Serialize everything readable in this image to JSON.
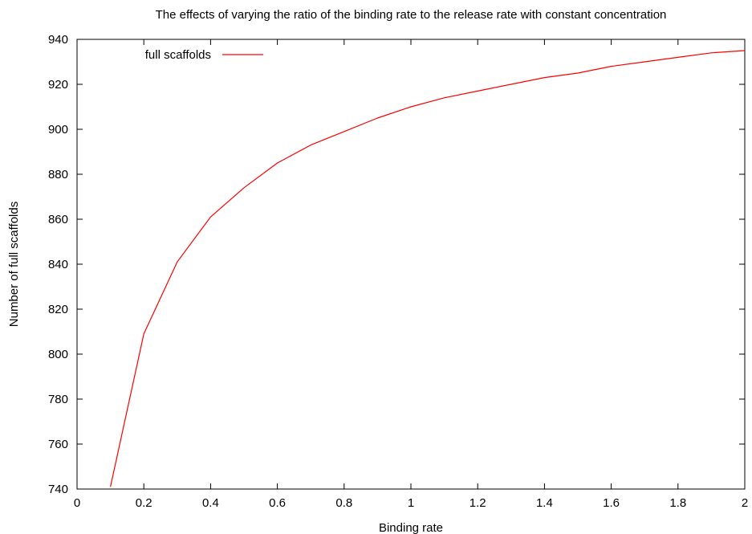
{
  "chart_data": {
    "type": "line",
    "title": "The effects of varying the ratio of the binding rate to the release rate with constant concentration",
    "xlabel": "Binding rate",
    "ylabel": "Number of full scaffolds",
    "xlim": [
      0,
      2
    ],
    "ylim": [
      740,
      940
    ],
    "x_ticks": [
      0,
      0.2,
      0.4,
      0.6,
      0.8,
      1,
      1.2,
      1.4,
      1.6,
      1.8,
      2
    ],
    "x_tick_labels": [
      "0",
      "0.2",
      "0.4",
      "0.6",
      "0.8",
      "1",
      "1.2",
      "1.4",
      "1.6",
      "1.8",
      "2"
    ],
    "y_ticks": [
      740,
      760,
      780,
      800,
      820,
      840,
      860,
      880,
      900,
      920,
      940
    ],
    "y_tick_labels": [
      "740",
      "760",
      "780",
      "800",
      "820",
      "840",
      "860",
      "880",
      "900",
      "920",
      "940"
    ],
    "grid": false,
    "legend_position": "top-left",
    "series": [
      {
        "name": "full scaffolds",
        "color": "#ff0000",
        "x": [
          0.1,
          0.2,
          0.3,
          0.4,
          0.5,
          0.6,
          0.7,
          0.8,
          0.9,
          1.0,
          1.1,
          1.2,
          1.3,
          1.4,
          1.5,
          1.6,
          1.7,
          1.8,
          1.9,
          2.0
        ],
        "y": [
          741,
          809,
          841,
          861,
          874,
          885,
          893,
          899,
          905,
          910,
          914,
          917,
          920,
          923,
          925,
          928,
          930,
          932,
          934,
          935
        ]
      }
    ]
  }
}
